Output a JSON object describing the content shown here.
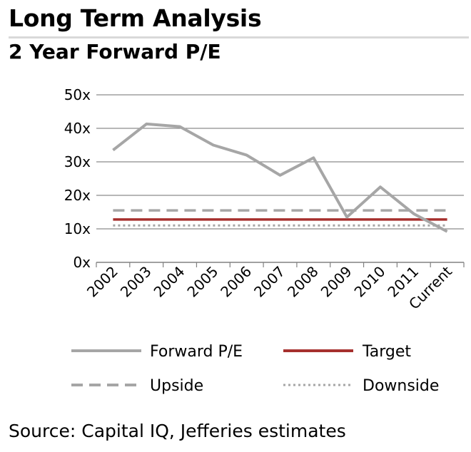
{
  "header": {
    "title": "Long Term Analysis",
    "subtitle": "2 Year Forward P/E"
  },
  "footer": {
    "source": "Source: Capital IQ, Jefferies estimates"
  },
  "chart_data": {
    "type": "line",
    "categories": [
      "2002",
      "2003",
      "2004",
      "2005",
      "2006",
      "2007",
      "2008",
      "2009",
      "2010",
      "2011",
      "Current"
    ],
    "y_tick_labels": [
      "0x",
      "10x",
      "20x",
      "30x",
      "40x",
      "50x"
    ],
    "ylim": [
      0,
      50
    ],
    "grid": true,
    "legend_position": "bottom",
    "series": [
      {
        "name": "Forward P/E",
        "style": "solid",
        "color": "#a6a6a6",
        "values": [
          33.5,
          41.3,
          40.5,
          35.0,
          32.0,
          26.0,
          31.2,
          13.5,
          22.5,
          14.5,
          9.2
        ]
      },
      {
        "name": "Target",
        "style": "solid",
        "color": "#a6302e",
        "values": [
          12.8,
          12.8,
          12.8,
          12.8,
          12.8,
          12.8,
          12.8,
          12.8,
          12.8,
          12.8,
          12.8
        ]
      },
      {
        "name": "Upside",
        "style": "dashed",
        "color": "#a6a6a6",
        "values": [
          15.5,
          15.5,
          15.5,
          15.5,
          15.5,
          15.5,
          15.5,
          15.5,
          15.5,
          15.5,
          15.5
        ]
      },
      {
        "name": "Downside",
        "style": "dotted",
        "color": "#a6a6a6",
        "values": [
          11.0,
          11.0,
          11.0,
          11.0,
          11.0,
          11.0,
          11.0,
          11.0,
          11.0,
          11.0,
          11.0
        ]
      }
    ]
  }
}
